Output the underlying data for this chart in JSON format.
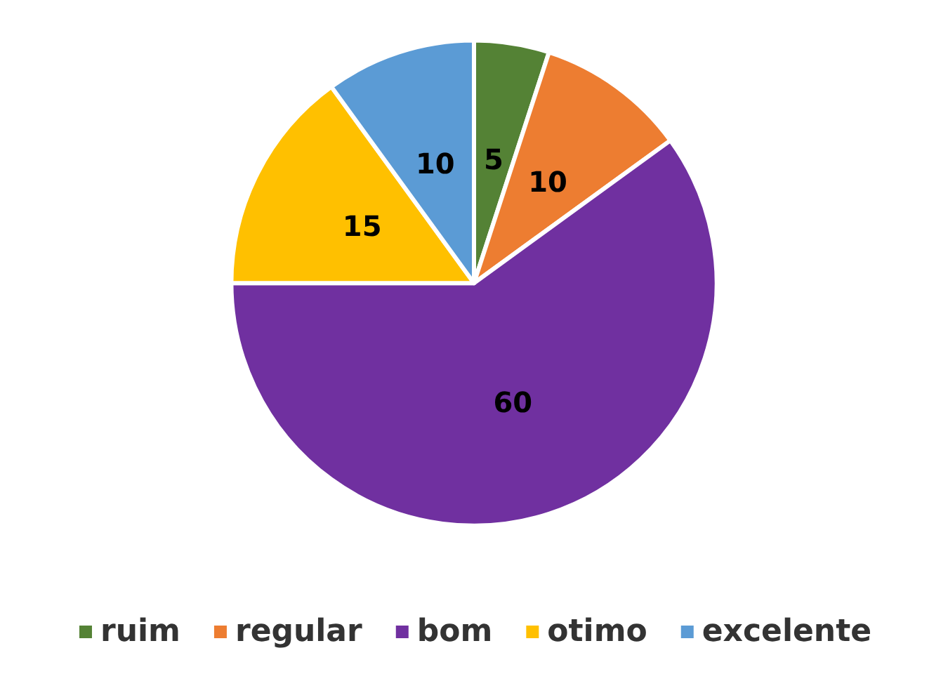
{
  "chart_data": {
    "type": "pie",
    "categories": [
      "ruim",
      "regular",
      "bom",
      "otimo",
      "excelente"
    ],
    "values": [
      5,
      10,
      60,
      15,
      10
    ],
    "colors": [
      "#548235",
      "#ed7d31",
      "#7030a0",
      "#ffc000",
      "#5b9bd5"
    ],
    "data_labels": true,
    "legend": "bottom"
  }
}
